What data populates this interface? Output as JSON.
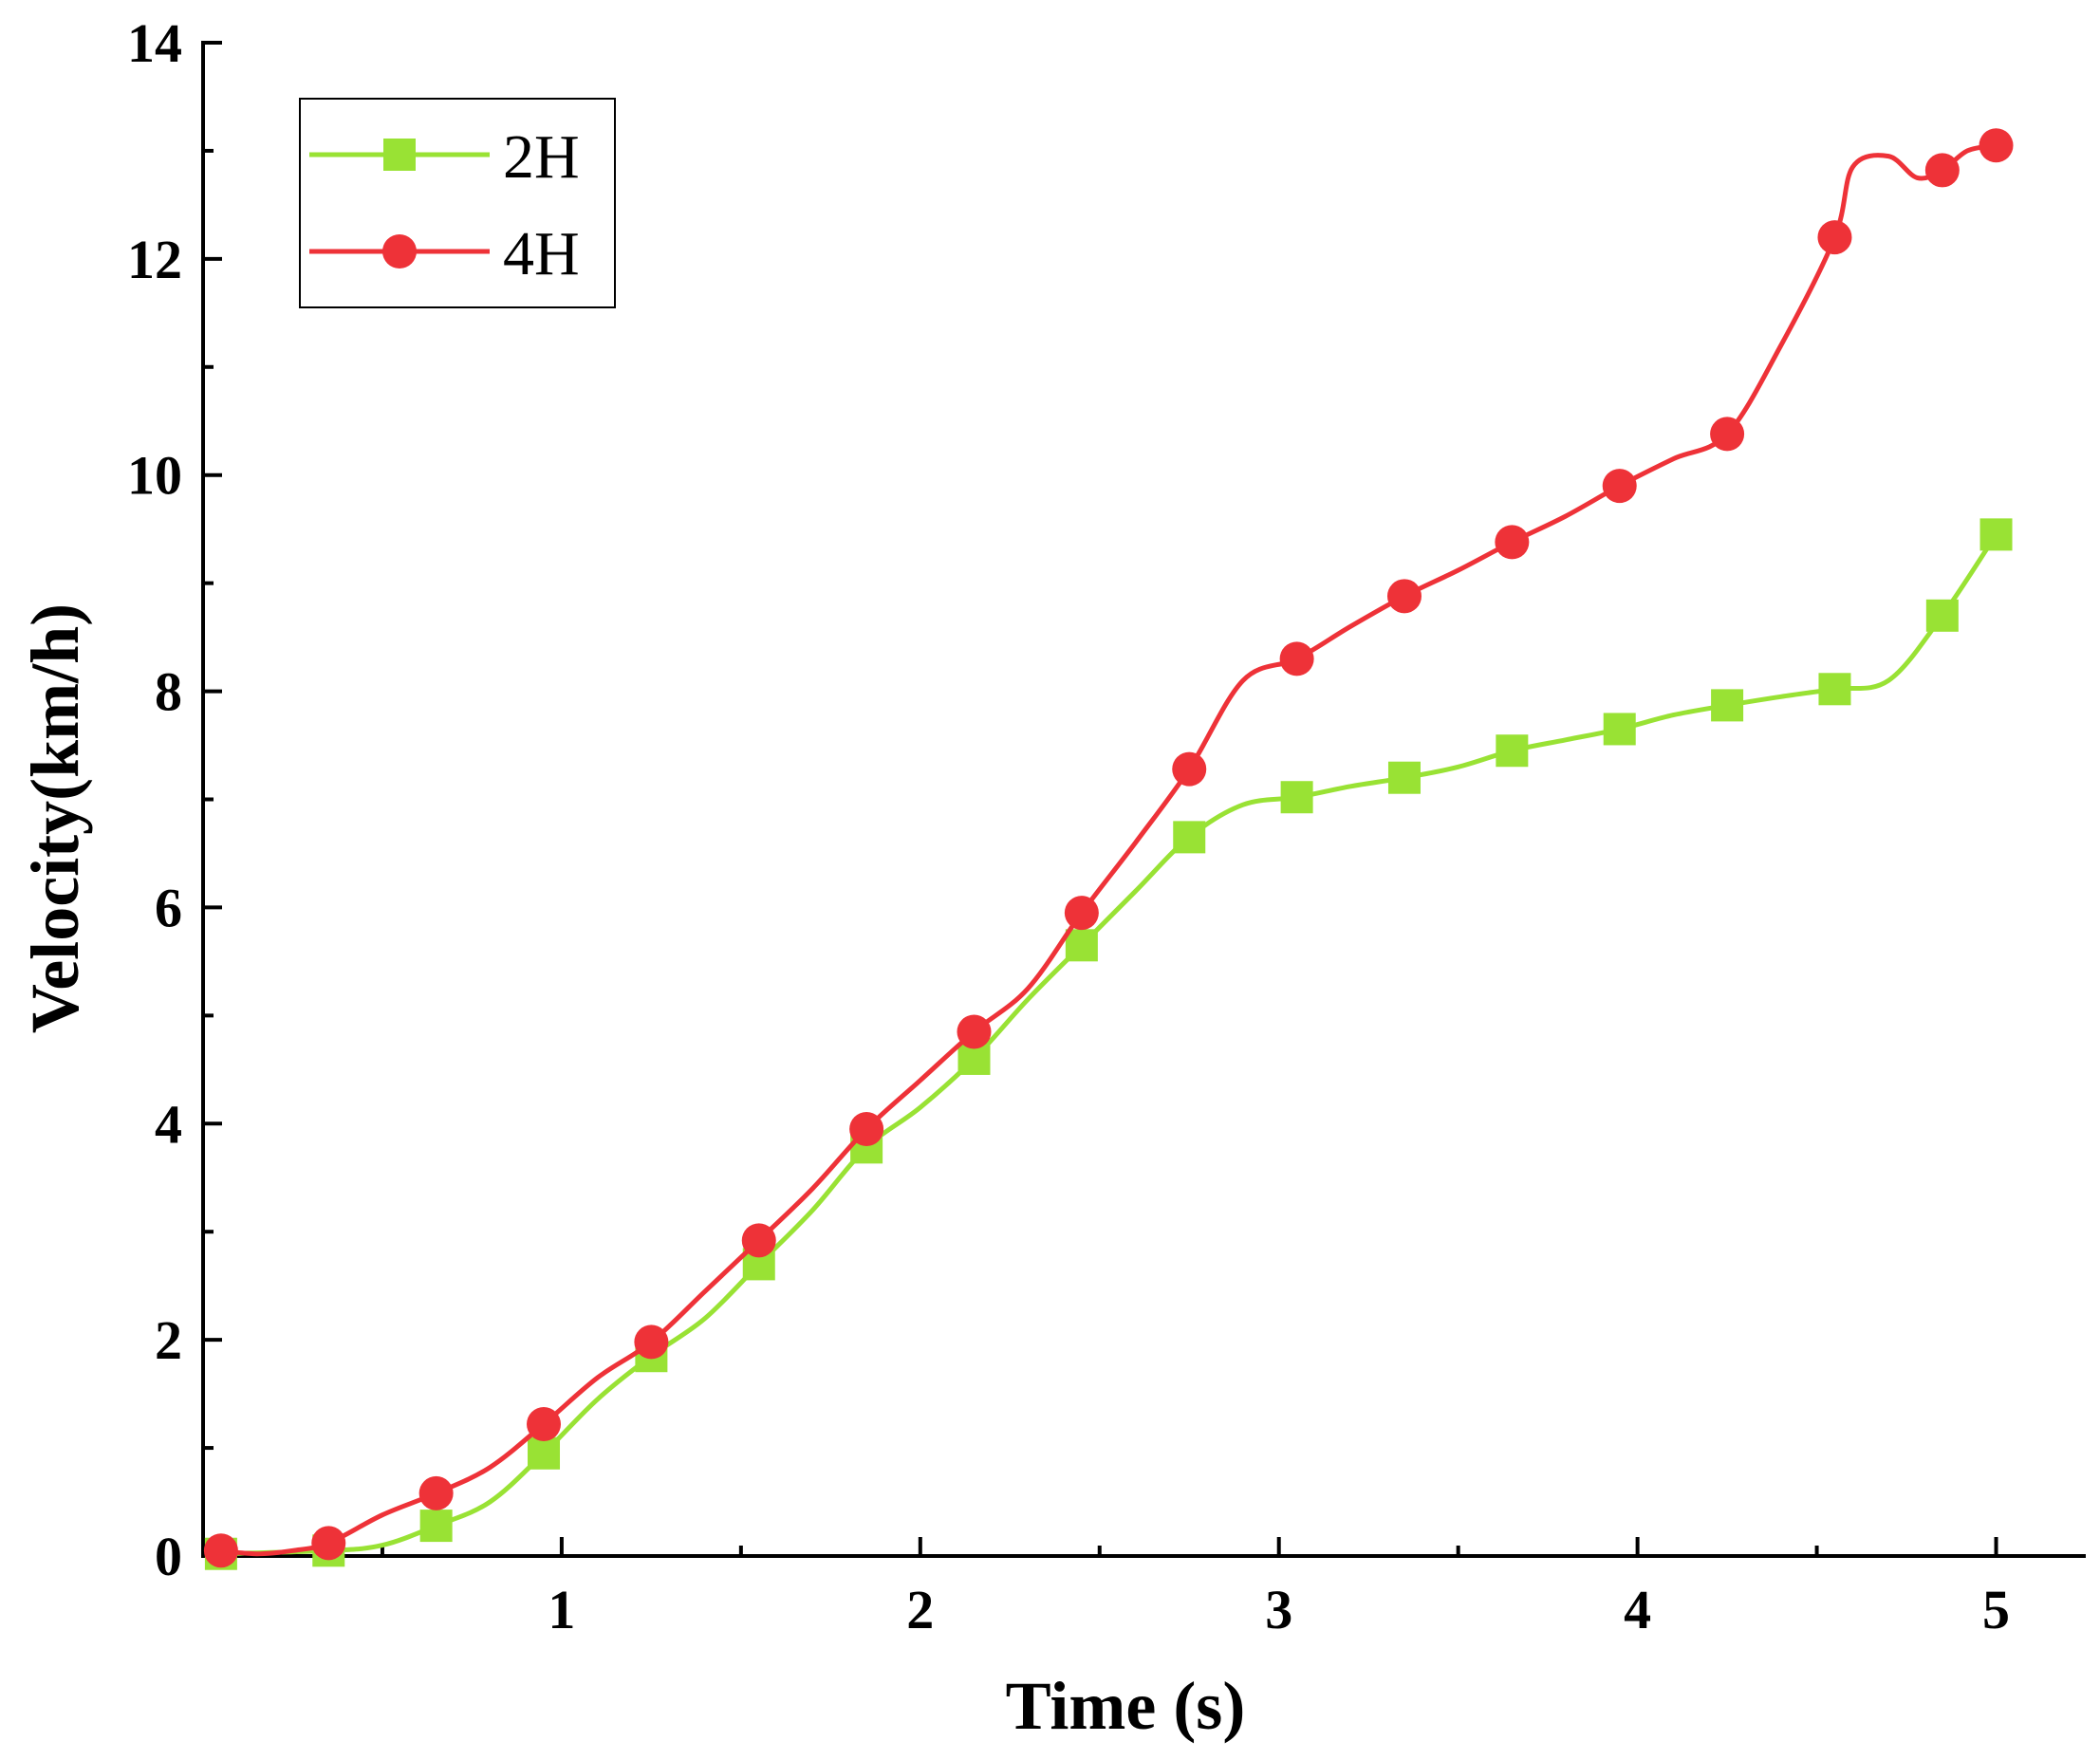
{
  "chart_data": {
    "type": "line",
    "title": "",
    "xlabel": "Time (s)",
    "ylabel": "Velocity(km/h)",
    "xlim": [
      0,
      5.25
    ],
    "ylim": [
      0,
      14
    ],
    "xticks": [
      1,
      2,
      3,
      4,
      5
    ],
    "yticks": [
      0,
      2,
      4,
      6,
      8,
      10,
      12,
      14
    ],
    "grid": false,
    "legend_position": "top-left",
    "series": [
      {
        "name": "2H",
        "color": "#99e234",
        "marker": "square",
        "x": [
          0.05,
          0.35,
          0.5,
          0.65,
          0.8,
          0.95,
          1.1,
          1.25,
          1.4,
          1.55,
          1.7,
          1.85,
          2.0,
          2.15,
          2.3,
          2.45,
          2.6,
          2.75,
          2.9,
          3.05,
          3.2,
          3.35,
          3.5,
          3.65,
          3.8,
          3.95,
          4.1,
          4.25,
          4.4,
          4.55,
          4.7,
          4.85,
          5.0
        ],
        "y": [
          0.02,
          0.05,
          0.1,
          0.28,
          0.5,
          0.95,
          1.45,
          1.85,
          2.2,
          2.7,
          3.2,
          3.78,
          4.15,
          4.6,
          5.15,
          5.65,
          6.15,
          6.65,
          6.95,
          7.02,
          7.12,
          7.2,
          7.3,
          7.45,
          7.55,
          7.65,
          7.78,
          7.87,
          7.95,
          8.02,
          8.1,
          8.7,
          9.45
        ],
        "marker_x": [
          0.05,
          0.35,
          0.65,
          0.95,
          1.25,
          1.55,
          1.85,
          2.15,
          2.45,
          2.75,
          3.05,
          3.35,
          3.65,
          3.95,
          4.25,
          4.55,
          4.85,
          5.0
        ],
        "marker_y": [
          0.02,
          0.05,
          0.28,
          0.95,
          1.85,
          2.7,
          3.78,
          4.6,
          5.65,
          6.65,
          7.02,
          7.2,
          7.45,
          7.65,
          7.87,
          8.02,
          8.7,
          9.45
        ]
      },
      {
        "name": "4H",
        "color": "#ee3238",
        "marker": "circle",
        "x": [
          0.05,
          0.15,
          0.25,
          0.35,
          0.5,
          0.65,
          0.8,
          0.95,
          1.1,
          1.25,
          1.4,
          1.55,
          1.7,
          1.85,
          2.0,
          2.15,
          2.3,
          2.45,
          2.6,
          2.75,
          2.9,
          3.05,
          3.2,
          3.35,
          3.5,
          3.65,
          3.8,
          3.95,
          4.1,
          4.25,
          4.4,
          4.55,
          4.6,
          4.7,
          4.78,
          4.85,
          4.92,
          5.0
        ],
        "y": [
          0.05,
          0.02,
          0.05,
          0.12,
          0.38,
          0.58,
          0.82,
          1.22,
          1.65,
          1.98,
          2.45,
          2.92,
          3.4,
          3.95,
          4.4,
          4.85,
          5.25,
          5.95,
          6.6,
          7.28,
          8.1,
          8.3,
          8.6,
          8.88,
          9.12,
          9.38,
          9.62,
          9.9,
          10.15,
          10.38,
          11.2,
          12.2,
          12.85,
          12.95,
          12.75,
          12.82,
          13.0,
          13.05
        ],
        "marker_x": [
          0.05,
          0.35,
          0.65,
          0.95,
          1.25,
          1.55,
          1.85,
          2.15,
          2.45,
          2.75,
          3.05,
          3.35,
          3.65,
          3.95,
          4.25,
          4.55,
          4.85,
          5.0
        ],
        "marker_y": [
          0.05,
          0.12,
          0.58,
          1.22,
          1.98,
          2.92,
          3.95,
          4.85,
          5.95,
          7.28,
          8.3,
          8.88,
          9.38,
          9.9,
          10.38,
          12.2,
          12.82,
          13.05
        ]
      }
    ]
  }
}
